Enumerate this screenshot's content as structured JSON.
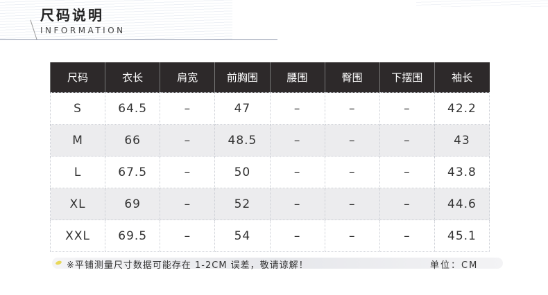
{
  "header": {
    "title": "尺码说明",
    "subtitle": "INFORMATION"
  },
  "table": {
    "columns": [
      "尺码",
      "衣长",
      "肩宽",
      "前胸围",
      "腰围",
      "臀围",
      "下摆围",
      "袖长"
    ],
    "rows": [
      [
        "S",
        "64.5",
        "–",
        "47",
        "–",
        "–",
        "–",
        "42.2"
      ],
      [
        "M",
        "66",
        "–",
        "48.5",
        "–",
        "–",
        "–",
        "43"
      ],
      [
        "L",
        "67.5",
        "–",
        "50",
        "–",
        "–",
        "–",
        "43.8"
      ],
      [
        "XL",
        "69",
        "–",
        "52",
        "–",
        "–",
        "–",
        "44.6"
      ],
      [
        "XXL",
        "69.5",
        "–",
        "54",
        "–",
        "–",
        "–",
        "45.1"
      ]
    ]
  },
  "footer": {
    "note": "※平铺测量尺寸数据可能存在 1-2CM 误差，敬请谅解！",
    "unit": "单位：CM"
  },
  "colors": {
    "header_bg": "#2d292a",
    "alt_row": "#ececee",
    "accent_dot": "#e8d85a"
  }
}
